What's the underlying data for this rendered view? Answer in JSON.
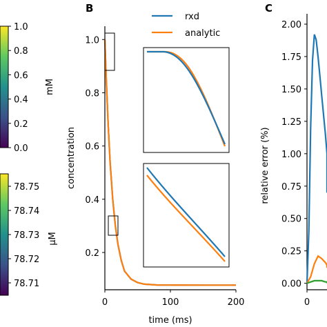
{
  "panels": {
    "b": "B",
    "c": "C"
  },
  "colors": {
    "rxd": "#1f77b4",
    "analytic": "#ff7f0e",
    "third": "#2ca02c"
  },
  "colorbars": [
    {
      "label": "mM",
      "ticks": [
        "1.0",
        "0.8",
        "0.6",
        "0.4",
        "0.2",
        "0.0"
      ]
    },
    {
      "label": "μM",
      "ticks": [
        "78.75",
        "78.74",
        "78.73",
        "78.72",
        "78.71"
      ]
    }
  ],
  "chart_data": [
    {
      "type": "line",
      "xlabel": "time (ms)",
      "ylabel": "concentration",
      "xlim": [
        0,
        200
      ],
      "ylim": [
        0.06,
        1.05
      ],
      "xticks": [
        "0",
        "100",
        "200"
      ],
      "yticks": [
        "0.2",
        "0.4",
        "0.6",
        "0.8",
        "1.0"
      ],
      "legend": {
        "placement": "top-right",
        "entries": [
          "rxd",
          "analytic"
        ]
      },
      "series": [
        {
          "name": "rxd",
          "x": [
            0,
            2,
            5,
            8,
            12,
            16,
            20,
            25,
            30,
            40,
            50,
            60,
            80,
            100,
            150,
            200
          ],
          "y": [
            1.0,
            0.86,
            0.68,
            0.54,
            0.4,
            0.3,
            0.23,
            0.17,
            0.13,
            0.1,
            0.087,
            0.081,
            0.078,
            0.0775,
            0.0773,
            0.0773
          ]
        },
        {
          "name": "analytic",
          "x": [
            0,
            2,
            5,
            8,
            12,
            16,
            20,
            25,
            30,
            40,
            50,
            60,
            80,
            100,
            150,
            200
          ],
          "y": [
            1.0,
            0.86,
            0.68,
            0.54,
            0.4,
            0.3,
            0.23,
            0.17,
            0.13,
            0.1,
            0.087,
            0.081,
            0.078,
            0.0775,
            0.0773,
            0.0773
          ]
        }
      ]
    },
    {
      "type": "line",
      "ylabel": "relative error (%)",
      "xticks": [
        "0"
      ],
      "yticks": [
        "0.00",
        "0.25",
        "0.50",
        "0.75",
        "1.00",
        "1.25",
        "1.50",
        "1.75",
        "2.00"
      ],
      "ylim": [
        -0.05,
        2.08
      ],
      "xlim": [
        0,
        30
      ],
      "series": [
        {
          "x": [
            0,
            1,
            2,
            3,
            4,
            5,
            6,
            7,
            8,
            9,
            10,
            11,
            12,
            13,
            14
          ],
          "y": [
            0.0,
            0.4,
            1.2,
            1.72,
            1.92,
            1.88,
            1.75,
            1.6,
            1.45,
            1.3,
            1.15,
            1.0,
            0.88,
            0.78,
            0.7
          ]
        },
        {
          "x": [
            0,
            2,
            4,
            6,
            8,
            10,
            12,
            14
          ],
          "y": [
            0.0,
            0.05,
            0.15,
            0.21,
            0.19,
            0.16,
            0.14,
            0.12
          ]
        },
        {
          "x": [
            0,
            2,
            4,
            6,
            8,
            10,
            12,
            14
          ],
          "y": [
            0.0,
            0.01,
            0.02,
            0.02,
            0.02,
            0.01,
            0.01,
            0.0
          ]
        }
      ]
    }
  ]
}
